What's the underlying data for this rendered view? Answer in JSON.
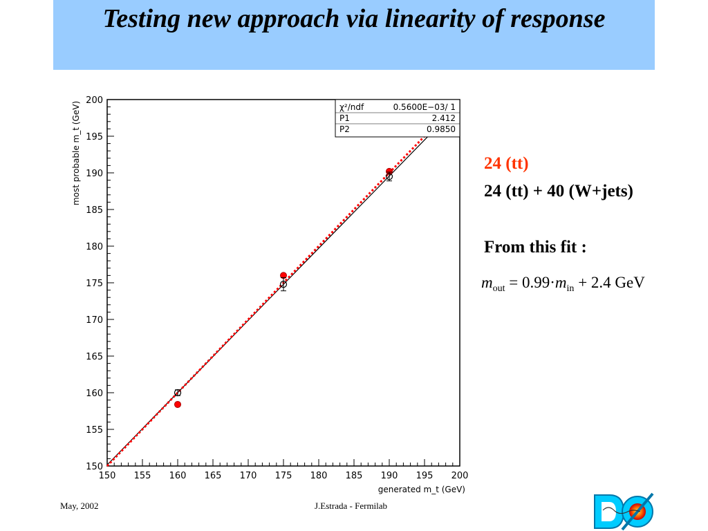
{
  "slide": {
    "title": "Testing new approach via linearity of response",
    "legend_red": "24 (tt)",
    "legend_black": "24 (tt) + 40 (W+jets)",
    "fit_heading": "From this fit :",
    "formula": {
      "m": "m",
      "sub_out": "out",
      "equals_coef": "= 0.99",
      "dot": "·",
      "sub_in": "in",
      "plus_const": "+ 2.4",
      "unit": "GeV"
    },
    "footer_left": "May, 2002",
    "footer_center": "J.Estrada - Fermilab",
    "logo_text": "DØ"
  },
  "colors": {
    "title_bg": "#99ccff",
    "red_series": "#ff0000",
    "legend_red_text": "#ff3300",
    "black_series": "#000000"
  },
  "chart_data": {
    "type": "scatter",
    "xlabel": "generated m_t (GeV)",
    "ylabel": "most probable m_t (GeV)",
    "xlim": [
      150,
      200
    ],
    "ylim": [
      150,
      200
    ],
    "x_ticks": [
      "150",
      "155",
      "160",
      "165",
      "170",
      "175",
      "180",
      "185",
      "190",
      "195",
      "200"
    ],
    "y_ticks": [
      "150",
      "155",
      "160",
      "165",
      "170",
      "175",
      "180",
      "185",
      "190",
      "195",
      "200"
    ],
    "grid": false,
    "stats_box": {
      "rows": [
        {
          "label": "χ²/ndf",
          "value": "0.5600E−03/    1"
        },
        {
          "label": "P1",
          "value": "2.412"
        },
        {
          "label": "P2",
          "value": "0.9850"
        }
      ]
    },
    "series": [
      {
        "name": "24 (tt)",
        "color": "#ff0000",
        "marker": "filled-circle",
        "points": [
          {
            "x": 160,
            "y": 158.4
          },
          {
            "x": 175,
            "y": 176.0
          },
          {
            "x": 190,
            "y": 190.2
          }
        ]
      },
      {
        "name": "24 (tt) + 40 (W+jets)",
        "color": "#000000",
        "marker": "open-circle",
        "points": [
          {
            "x": 160,
            "y": 160.0,
            "err": 0.4
          },
          {
            "x": 175,
            "y": 174.8,
            "err": 0.9
          },
          {
            "x": 190,
            "y": 189.5,
            "err": 0.6
          }
        ]
      }
    ],
    "fit_lines": [
      {
        "name": "fit",
        "color": "#000000",
        "style": "solid",
        "p1": 2.412,
        "p2": 0.985
      },
      {
        "name": "diagonal",
        "color": "#ff0000",
        "style": "dotted",
        "p1": 0,
        "p2": 1
      }
    ]
  }
}
